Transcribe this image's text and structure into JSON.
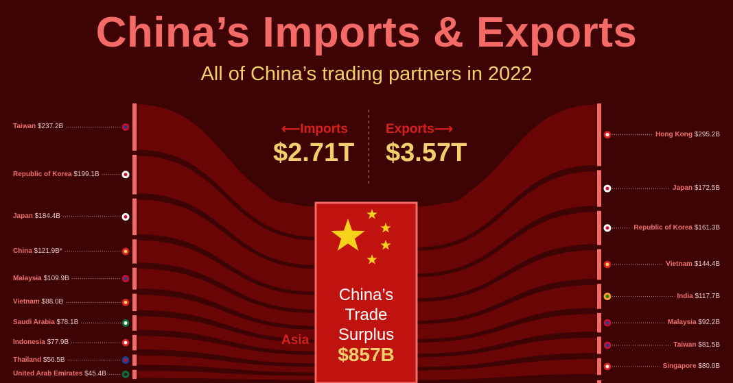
{
  "title": "China’s Imports & Exports",
  "subtitle": "All of China’s trading partners in 2022",
  "colors": {
    "background": "#3e0405",
    "flow": "#6a0505",
    "bar": "#f46a66",
    "center": "#c0120f",
    "title": "#f46a66",
    "accent": "#f3d06a"
  },
  "summary": {
    "imports_label": "Imports",
    "imports_arrow": "⟵",
    "imports_total": "$2.71T",
    "exports_label": "Exports",
    "exports_arrow": "⟶",
    "exports_total": "$3.57T",
    "center_line1": "China’s",
    "center_line2": "Trade",
    "center_line3": "Surplus",
    "surplus": "$857B",
    "region_label": "Asia"
  },
  "chart_data": {
    "type": "sankey",
    "title": "China’s Imports & Exports",
    "subtitle": "All of China’s trading partners in 2022",
    "units": "USD billions",
    "imports": [
      {
        "name": "Taiwan",
        "label": "$237.2B",
        "value": 237.2,
        "flag": "taiwan-flag"
      },
      {
        "name": "Republic of Korea",
        "label": "$199.1B",
        "value": 199.1,
        "flag": "south-korea-flag"
      },
      {
        "name": "Japan",
        "label": "$184.4B",
        "value": 184.4,
        "flag": "japan-flag"
      },
      {
        "name": "China",
        "label": "$121.9B*",
        "value": 121.9,
        "flag": "china-flag"
      },
      {
        "name": "Malaysia",
        "label": "$109.9B",
        "value": 109.9,
        "flag": "malaysia-flag"
      },
      {
        "name": "Vietnam",
        "label": "$88.0B",
        "value": 88.0,
        "flag": "vietnam-flag"
      },
      {
        "name": "Saudi Arabia",
        "label": "$78.1B",
        "value": 78.1,
        "flag": "saudi-arabia-flag"
      },
      {
        "name": "Indonesia",
        "label": "$77.9B",
        "value": 77.9,
        "flag": "indonesia-flag"
      },
      {
        "name": "Thailand",
        "label": "$56.5B",
        "value": 56.5,
        "flag": "thailand-flag"
      },
      {
        "name": "United Arab Emirates",
        "label": "$45.4B",
        "value": 45.4,
        "flag": "uae-flag"
      }
    ],
    "exports": [
      {
        "name": "Hong Kong",
        "label": "$295.2B",
        "value": 295.2,
        "flag": "hong-kong-flag"
      },
      {
        "name": "Japan",
        "label": "$172.5B",
        "value": 172.5,
        "flag": "japan-flag"
      },
      {
        "name": "Republic of Korea",
        "label": "$161.3B",
        "value": 161.3,
        "flag": "south-korea-flag"
      },
      {
        "name": "Vietnam",
        "label": "$144.4B",
        "value": 144.4,
        "flag": "vietnam-flag"
      },
      {
        "name": "India",
        "label": "$117.7B",
        "value": 117.7,
        "flag": "india-flag"
      },
      {
        "name": "Malaysia",
        "label": "$92.2B",
        "value": 92.2,
        "flag": "malaysia-flag"
      },
      {
        "name": "Taiwan",
        "label": "$81.5B",
        "value": 81.5,
        "flag": "taiwan-flag"
      },
      {
        "name": "Singapore",
        "label": "$80.0B",
        "value": 80.0,
        "flag": "singapore-flag"
      }
    ],
    "imports_total": 2710,
    "exports_total": 3570,
    "trade_surplus": 857
  }
}
